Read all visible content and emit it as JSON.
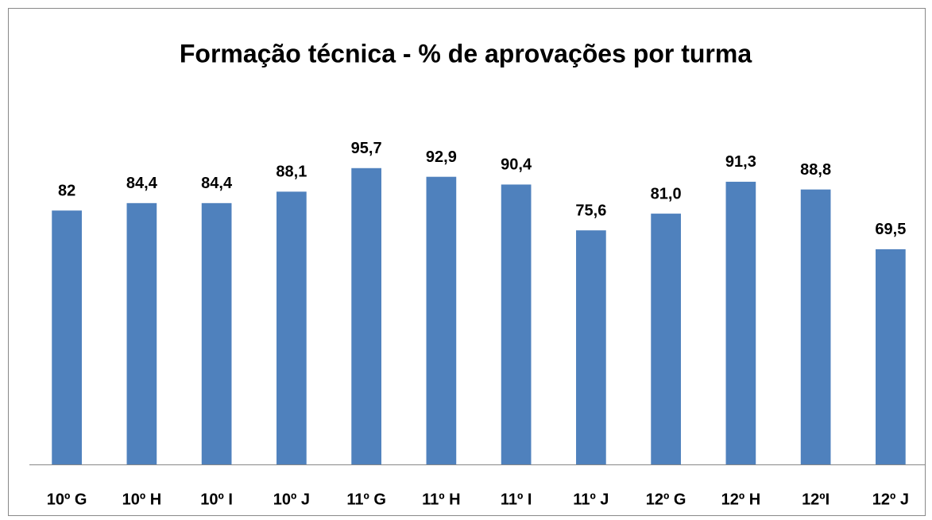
{
  "chart_data": {
    "type": "bar",
    "title": "Formação técnica - % de aprovações por turma",
    "categories": [
      "10º G",
      "10º H",
      "10º I",
      "10º J",
      "11º G",
      "11º H",
      "11º I",
      "11º J",
      "12º G",
      "12º H",
      "12ºI",
      "12º J"
    ],
    "values": [
      82,
      84.4,
      84.4,
      88.1,
      95.7,
      92.9,
      90.4,
      75.6,
      81.0,
      91.3,
      88.8,
      69.5
    ],
    "value_labels": [
      "82",
      "84,4",
      "84,4",
      "88,1",
      "95,7",
      "92,9",
      "90,4",
      "75,6",
      "81,0",
      "91,3",
      "88,8",
      "69,5"
    ],
    "color": "#4f81bd",
    "ylim": [
      0,
      100
    ]
  }
}
